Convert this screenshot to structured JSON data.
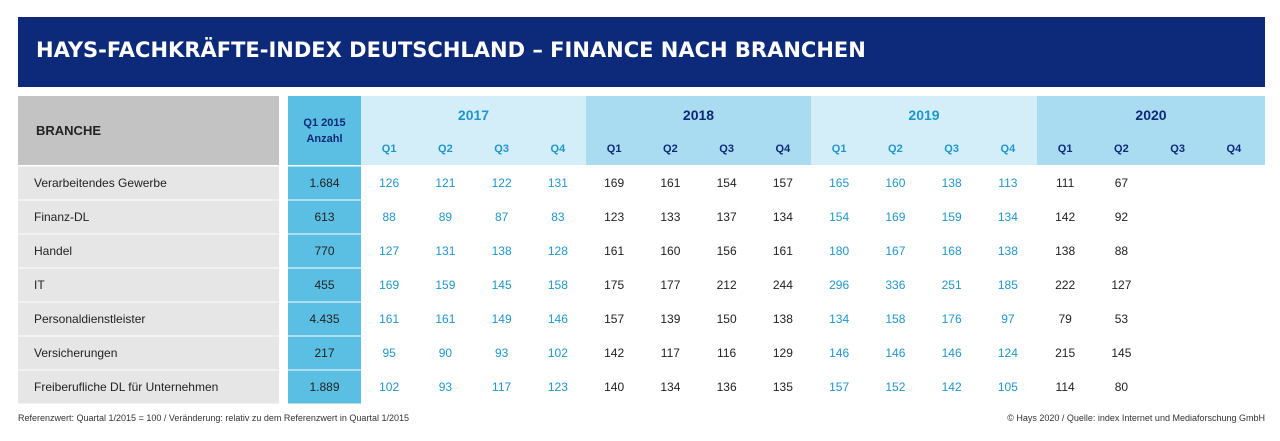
{
  "title": "HAYS-FACHKRÄFTE-INDEX DEUTSCHLAND – FINANCE NACH BRANCHEN",
  "header": {
    "branche_label": "BRANCHE",
    "ref_label_line1": "Q1 2015",
    "ref_label_line2": "Anzahl",
    "years": [
      "2017",
      "2018",
      "2019",
      "2020"
    ],
    "quarters": [
      "Q1",
      "Q2",
      "Q3",
      "Q4"
    ]
  },
  "colors": {
    "title_bg": "#0d2a7a",
    "branche_header_bg": "#c3c3c3",
    "row_label_bg": "#e6e6e6",
    "ref_col_bg": "#5bbfe3",
    "year_light_bg": "#d3eef9",
    "year_mid_bg": "#a9dcf0",
    "light_year_text": "#1f96cc",
    "dark_year_text": "#0d2a7a",
    "body_text": "#222222"
  },
  "chart_data": {
    "type": "table",
    "title": "HAYS-FACHKRÄFTE-INDEX DEUTSCHLAND – FINANCE NACH BRANCHEN",
    "columns": [
      "2017 Q1",
      "2017 Q2",
      "2017 Q3",
      "2017 Q4",
      "2018 Q1",
      "2018 Q2",
      "2018 Q3",
      "2018 Q4",
      "2019 Q1",
      "2019 Q2",
      "2019 Q3",
      "2019 Q4",
      "2020 Q1",
      "2020 Q2",
      "2020 Q3",
      "2020 Q4"
    ],
    "rows": [
      {
        "branche": "Verarbeitendes Gewerbe",
        "ref": "1.684",
        "values": [
          "126",
          "121",
          "122",
          "131",
          "169",
          "161",
          "154",
          "157",
          "165",
          "160",
          "138",
          "113",
          "111",
          "67",
          "",
          ""
        ]
      },
      {
        "branche": "Finanz-DL",
        "ref": "613",
        "values": [
          "88",
          "89",
          "87",
          "83",
          "123",
          "133",
          "137",
          "134",
          "154",
          "169",
          "159",
          "134",
          "142",
          "92",
          "",
          ""
        ]
      },
      {
        "branche": "Handel",
        "ref": "770",
        "values": [
          "127",
          "131",
          "138",
          "128",
          "161",
          "160",
          "156",
          "161",
          "180",
          "167",
          "168",
          "138",
          "138",
          "88",
          "",
          ""
        ]
      },
      {
        "branche": "IT",
        "ref": "455",
        "values": [
          "169",
          "159",
          "145",
          "158",
          "175",
          "177",
          "212",
          "244",
          "296",
          "336",
          "251",
          "185",
          "222",
          "127",
          "",
          ""
        ]
      },
      {
        "branche": "Personaldienstleister",
        "ref": "4.435",
        "values": [
          "161",
          "161",
          "149",
          "146",
          "157",
          "139",
          "150",
          "138",
          "134",
          "158",
          "176",
          "97",
          "79",
          "53",
          "",
          ""
        ]
      },
      {
        "branche": "Versicherungen",
        "ref": "217",
        "values": [
          "95",
          "90",
          "93",
          "102",
          "142",
          "117",
          "116",
          "129",
          "146",
          "146",
          "146",
          "124",
          "215",
          "145",
          "",
          ""
        ]
      },
      {
        "branche": "Freiberufliche DL für Unternehmen",
        "ref": "1.889",
        "values": [
          "102",
          "93",
          "117",
          "123",
          "140",
          "134",
          "136",
          "135",
          "157",
          "152",
          "142",
          "105",
          "114",
          "80",
          "",
          ""
        ]
      }
    ]
  },
  "footer": {
    "left": "Referenzwert: Quartal 1/2015 = 100 / Veränderung: relativ zu dem Referenzwert in Quartal 1/2015",
    "right": "© Hays 2020 / Quelle: index Internet und Mediaforschung GmbH"
  }
}
